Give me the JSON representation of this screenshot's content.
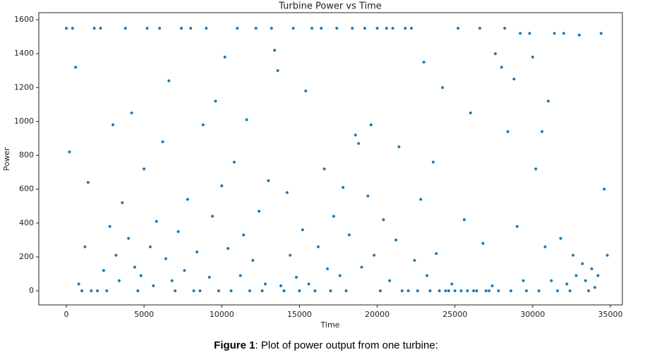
{
  "chart_data": {
    "type": "scatter",
    "title": "Turbine Power vs Time",
    "x_label": "Time",
    "y_label": "Power",
    "color": "#1f77b4",
    "grid": false,
    "xlim": [
      -1770,
      35770
    ],
    "ylim": [
      -83,
      1642
    ],
    "xticks": [
      0,
      5000,
      10000,
      15000,
      20000,
      25000,
      30000,
      35000
    ],
    "yticks": [
      0,
      200,
      400,
      600,
      800,
      1000,
      1200,
      1400,
      1600
    ],
    "x": [
      0,
      200,
      400,
      600,
      800,
      1000,
      1200,
      1400,
      1600,
      1800,
      2000,
      2200,
      2400,
      2600,
      2800,
      3000,
      3200,
      3400,
      3600,
      3800,
      4000,
      4200,
      4400,
      4600,
      4800,
      5000,
      5200,
      5400,
      5600,
      5800,
      6000,
      6200,
      6400,
      6600,
      6800,
      7000,
      7200,
      7400,
      7600,
      7800,
      8000,
      8200,
      8400,
      8600,
      8800,
      9000,
      9200,
      9400,
      9600,
      9800,
      10000,
      10200,
      10400,
      10600,
      10800,
      11000,
      11200,
      11400,
      11600,
      11800,
      12000,
      12200,
      12400,
      12600,
      12800,
      13000,
      13200,
      13400,
      13600,
      13800,
      14000,
      14200,
      14400,
      14600,
      14800,
      15000,
      15200,
      15400,
      15600,
      15800,
      16000,
      16200,
      16400,
      16600,
      16800,
      17000,
      17200,
      17400,
      17600,
      17800,
      18000,
      18200,
      18400,
      18600,
      18800,
      19000,
      19200,
      19400,
      19600,
      19800,
      20000,
      20200,
      20400,
      20600,
      20800,
      21000,
      21200,
      21400,
      21600,
      21800,
      22000,
      22200,
      22400,
      22600,
      22800,
      23000,
      23200,
      23400,
      23600,
      23800,
      24000,
      24200,
      24400,
      24600,
      24800,
      25000,
      25200,
      25400,
      25600,
      25800,
      26000,
      26200,
      26400,
      26600,
      26800,
      27000,
      27200,
      27400,
      27600,
      27800,
      28000,
      28200,
      28400,
      28600,
      28800,
      29000,
      29200,
      29400,
      29600,
      29800,
      30000,
      30200,
      30400,
      30600,
      30800,
      31000,
      31200,
      31400,
      31600,
      31800,
      32000,
      32200,
      32400,
      32600,
      32800,
      33000,
      33200,
      33400,
      33600,
      33800,
      34000,
      34200,
      34400,
      34600,
      34800
    ],
    "values": [
      1550,
      820,
      1550,
      1320,
      40,
      0,
      260,
      640,
      0,
      1550,
      0,
      1550,
      120,
      0,
      380,
      980,
      210,
      60,
      520,
      1550,
      310,
      1050,
      140,
      0,
      90,
      720,
      1550,
      260,
      30,
      410,
      1550,
      880,
      190,
      1240,
      60,
      0,
      350,
      1550,
      120,
      540,
      1550,
      0,
      230,
      0,
      980,
      1550,
      80,
      440,
      1120,
      0,
      620,
      1380,
      250,
      0,
      760,
      1550,
      90,
      330,
      1010,
      0,
      180,
      1550,
      470,
      0,
      40,
      650,
      1550,
      1420,
      1300,
      30,
      0,
      580,
      210,
      1550,
      80,
      0,
      360,
      1180,
      40,
      1550,
      0,
      260,
      1550,
      720,
      130,
      0,
      440,
      1550,
      90,
      610,
      0,
      330,
      1550,
      920,
      870,
      140,
      1550,
      560,
      980,
      210,
      1550,
      0,
      420,
      1550,
      60,
      1550,
      300,
      850,
      0,
      1550,
      0,
      1550,
      180,
      0,
      540,
      1350,
      90,
      0,
      760,
      220,
      0,
      1200,
      0,
      0,
      40,
      0,
      1550,
      0,
      420,
      0,
      1050,
      0,
      0,
      1550,
      280,
      0,
      0,
      30,
      1400,
      0,
      1320,
      1550,
      940,
      0,
      1250,
      380,
      1520,
      60,
      0,
      1520,
      1380,
      720,
      0,
      940,
      260,
      1120,
      60,
      1520,
      0,
      310,
      1520,
      40,
      0,
      210,
      90,
      1510,
      160,
      60,
      0,
      130,
      20,
      90,
      1520,
      600,
      210
    ]
  },
  "caption": {
    "label": "Figure 1",
    "text": ": Plot of power output from one turbine:"
  }
}
